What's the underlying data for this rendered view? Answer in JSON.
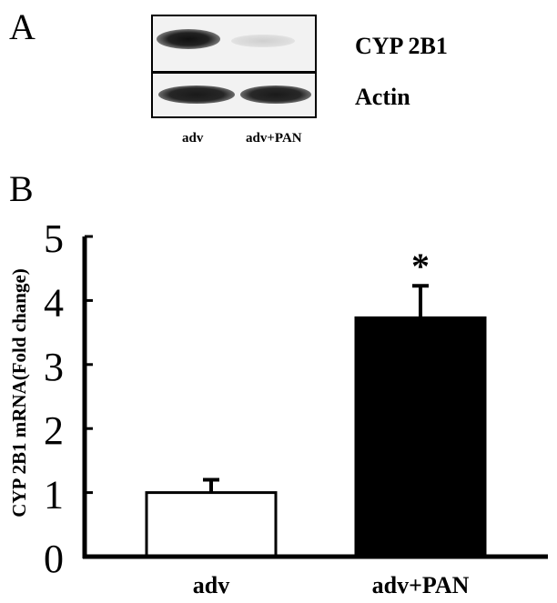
{
  "panel_a": {
    "label": "A",
    "blot_rows": [
      "CYP 2B1",
      "Actin"
    ],
    "lanes": [
      "adv",
      "adv+PAN"
    ]
  },
  "panel_b": {
    "label": "B"
  },
  "chart_data": {
    "type": "bar",
    "categories": [
      "adv",
      "adv+PAN"
    ],
    "values": [
      1.0,
      3.73
    ],
    "error": [
      0.2,
      0.5
    ],
    "bar_colors": [
      "#ffffff",
      "#000000"
    ],
    "bar_edge_color": "#000000",
    "ylabel": "CYP 2B1 mRNA(Fold change)",
    "ylim": [
      0,
      5
    ],
    "yticks": [
      "0",
      "1",
      "2",
      "3",
      "4",
      "5"
    ],
    "annotations": [
      {
        "category": "adv+PAN",
        "text": "*"
      }
    ],
    "grid": false
  }
}
